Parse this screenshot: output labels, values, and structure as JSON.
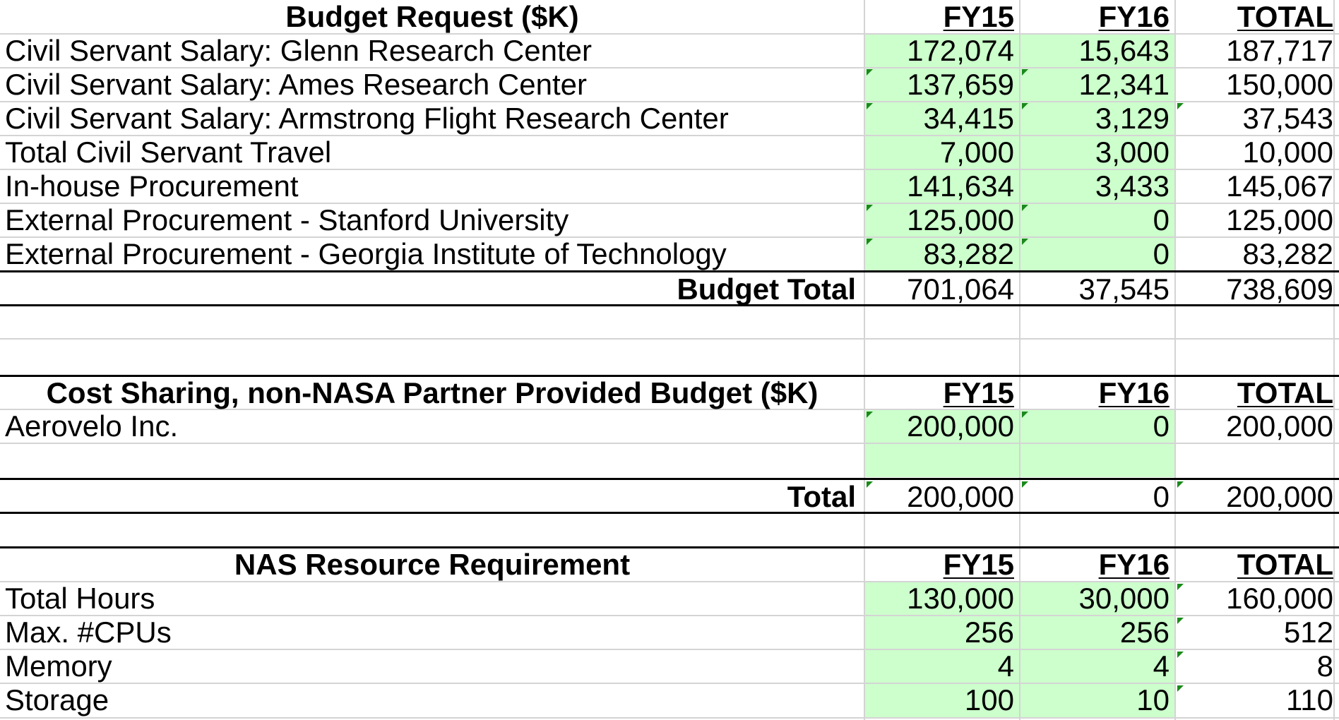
{
  "budget": {
    "title": "Budget Request ($K)",
    "col_headers": [
      "FY15",
      "FY16",
      "TOTAL"
    ],
    "rows": [
      {
        "label": "Civil Servant Salary: Glenn Research Center",
        "fy15": "172,074",
        "fy16": "15,643",
        "total": "187,717"
      },
      {
        "label": "Civil Servant Salary: Ames Research Center",
        "fy15": "137,659",
        "fy16": "12,341",
        "total": "150,000"
      },
      {
        "label": "Civil Servant Salary: Armstrong Flight Research Center",
        "fy15": "34,415",
        "fy16": "3,129",
        "total": "37,543"
      },
      {
        "label": "Total Civil Servant Travel",
        "fy15": "7,000",
        "fy16": "3,000",
        "total": "10,000"
      },
      {
        "label": "In-house Procurement",
        "fy15": "141,634",
        "fy16": "3,433",
        "total": "145,067"
      },
      {
        "label": "External Procurement - Stanford University",
        "fy15": "125,000",
        "fy16": "0",
        "total": "125,000"
      },
      {
        "label": "External Procurement - Georgia Institute of Technology",
        "fy15": "83,282",
        "fy16": "0",
        "total": "83,282"
      }
    ],
    "total": {
      "label": "Budget Total",
      "fy15": "701,064",
      "fy16": "37,545",
      "total": "738,609"
    }
  },
  "cost_sharing": {
    "title": "Cost Sharing, non-NASA Partner Provided Budget ($K)",
    "col_headers": [
      "FY15",
      "FY16",
      "TOTAL"
    ],
    "rows": [
      {
        "label": "Aerovelo Inc.",
        "fy15": "200,000",
        "fy16": "0",
        "total": "200,000"
      }
    ],
    "total": {
      "label": "Total",
      "fy15": "200,000",
      "fy16": "0",
      "total": "200,000"
    }
  },
  "nas": {
    "title": "NAS Resource Requirement",
    "col_headers": [
      "FY15",
      "FY16",
      "TOTAL"
    ],
    "rows": [
      {
        "label": "Total Hours",
        "fy15": "130,000",
        "fy16": "30,000",
        "total": "160,000"
      },
      {
        "label": "Max. #CPUs",
        "fy15": "256",
        "fy16": "256",
        "total": "512"
      },
      {
        "label": "Memory",
        "fy15": "4",
        "fy16": "4",
        "total": "8"
      },
      {
        "label": "Storage",
        "fy15": "100",
        "fy16": "10",
        "total": "110"
      }
    ]
  },
  "colors": {
    "input_fill": "#ccffcc",
    "grid": "#d4d4d4",
    "comment_marker": "#1a8a1a"
  }
}
